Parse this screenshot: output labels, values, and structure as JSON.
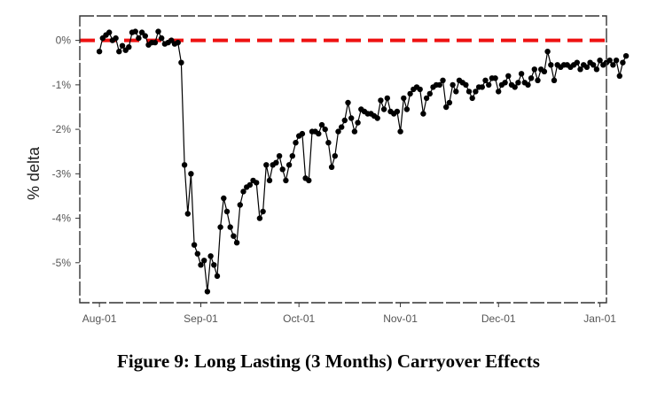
{
  "caption": "Figure 9: Long Lasting (3 Months) Carryover Effects",
  "chart_data": {
    "type": "line",
    "title": "",
    "xlabel": "",
    "ylabel": "% delta",
    "x_ticks": [
      "Aug-01",
      "Sep-01",
      "Oct-01",
      "Nov-01",
      "Dec-01",
      "Jan-01"
    ],
    "y_ticks": [
      "0%",
      "-1%",
      "-2%",
      "-3%",
      "-4%",
      "-5%"
    ],
    "y_tick_values": [
      0,
      -1,
      -2,
      -3,
      -4,
      -5
    ],
    "ylim": [
      -5.9,
      0.55
    ],
    "xlim": [
      "2001-07-26",
      "2002-01-03"
    ],
    "grid": false,
    "reference_line": {
      "y": 0,
      "color": "#ee1111",
      "style": "dashed"
    },
    "series_color": "#000000",
    "series": [
      {
        "points": [
          [
            "2001-08-01",
            -0.25
          ],
          [
            "2001-08-02",
            0.05
          ],
          [
            "2001-08-03",
            0.12
          ],
          [
            "2001-08-04",
            0.18
          ],
          [
            "2001-08-05",
            0.0
          ],
          [
            "2001-08-06",
            0.05
          ],
          [
            "2001-08-07",
            -0.25
          ],
          [
            "2001-08-08",
            -0.12
          ],
          [
            "2001-08-09",
            -0.22
          ],
          [
            "2001-08-10",
            -0.15
          ],
          [
            "2001-08-11",
            0.18
          ],
          [
            "2001-08-12",
            0.2
          ],
          [
            "2001-08-13",
            0.05
          ],
          [
            "2001-08-14",
            0.18
          ],
          [
            "2001-08-15",
            0.1
          ],
          [
            "2001-08-16",
            -0.1
          ],
          [
            "2001-08-17",
            -0.05
          ],
          [
            "2001-08-18",
            -0.05
          ],
          [
            "2001-08-19",
            0.2
          ],
          [
            "2001-08-20",
            0.05
          ],
          [
            "2001-08-21",
            -0.08
          ],
          [
            "2001-08-22",
            -0.05
          ],
          [
            "2001-08-23",
            -0.0
          ],
          [
            "2001-08-24",
            -0.08
          ],
          [
            "2001-08-25",
            -0.05
          ],
          [
            "2001-08-26",
            -0.5
          ],
          [
            "2001-08-27",
            -2.8
          ],
          [
            "2001-08-28",
            -3.9
          ],
          [
            "2001-08-29",
            -3.0
          ],
          [
            "2001-08-30",
            -4.6
          ],
          [
            "2001-08-31",
            -4.8
          ],
          [
            "2001-09-01",
            -5.05
          ],
          [
            "2001-09-02",
            -4.95
          ],
          [
            "2001-09-03",
            -5.65
          ],
          [
            "2001-09-04",
            -4.85
          ],
          [
            "2001-09-05",
            -5.05
          ],
          [
            "2001-09-06",
            -5.3
          ],
          [
            "2001-09-07",
            -4.2
          ],
          [
            "2001-09-08",
            -3.55
          ],
          [
            "2001-09-09",
            -3.85
          ],
          [
            "2001-09-10",
            -4.2
          ],
          [
            "2001-09-11",
            -4.4
          ],
          [
            "2001-09-12",
            -4.55
          ],
          [
            "2001-09-13",
            -3.7
          ],
          [
            "2001-09-14",
            -3.4
          ],
          [
            "2001-09-15",
            -3.3
          ],
          [
            "2001-09-16",
            -3.25
          ],
          [
            "2001-09-17",
            -3.15
          ],
          [
            "2001-09-18",
            -3.2
          ],
          [
            "2001-09-19",
            -4.0
          ],
          [
            "2001-09-20",
            -3.85
          ],
          [
            "2001-09-21",
            -2.8
          ],
          [
            "2001-09-22",
            -3.15
          ],
          [
            "2001-09-23",
            -2.8
          ],
          [
            "2001-09-24",
            -2.75
          ],
          [
            "2001-09-25",
            -2.6
          ],
          [
            "2001-09-26",
            -2.9
          ],
          [
            "2001-09-27",
            -3.15
          ],
          [
            "2001-09-28",
            -2.8
          ],
          [
            "2001-09-29",
            -2.6
          ],
          [
            "2001-09-30",
            -2.3
          ],
          [
            "2001-10-01",
            -2.15
          ],
          [
            "2001-10-02",
            -2.1
          ],
          [
            "2001-10-03",
            -3.1
          ],
          [
            "2001-10-04",
            -3.15
          ],
          [
            "2001-10-05",
            -2.05
          ],
          [
            "2001-10-06",
            -2.05
          ],
          [
            "2001-10-07",
            -2.1
          ],
          [
            "2001-10-08",
            -1.9
          ],
          [
            "2001-10-09",
            -2.0
          ],
          [
            "2001-10-10",
            -2.3
          ],
          [
            "2001-10-11",
            -2.85
          ],
          [
            "2001-10-12",
            -2.6
          ],
          [
            "2001-10-13",
            -2.05
          ],
          [
            "2001-10-14",
            -1.95
          ],
          [
            "2001-10-15",
            -1.8
          ],
          [
            "2001-10-16",
            -1.4
          ],
          [
            "2001-10-17",
            -1.75
          ],
          [
            "2001-10-18",
            -2.05
          ],
          [
            "2001-10-19",
            -1.85
          ],
          [
            "2001-10-20",
            -1.55
          ],
          [
            "2001-10-21",
            -1.6
          ],
          [
            "2001-10-22",
            -1.65
          ],
          [
            "2001-10-23",
            -1.65
          ],
          [
            "2001-10-24",
            -1.7
          ],
          [
            "2001-10-25",
            -1.75
          ],
          [
            "2001-10-26",
            -1.35
          ],
          [
            "2001-10-27",
            -1.55
          ],
          [
            "2001-10-28",
            -1.3
          ],
          [
            "2001-10-29",
            -1.6
          ],
          [
            "2001-10-30",
            -1.65
          ],
          [
            "2001-10-31",
            -1.6
          ],
          [
            "2001-11-01",
            -2.05
          ],
          [
            "2001-11-02",
            -1.3
          ],
          [
            "2001-11-03",
            -1.55
          ],
          [
            "2001-11-04",
            -1.2
          ],
          [
            "2001-11-05",
            -1.1
          ],
          [
            "2001-11-06",
            -1.05
          ],
          [
            "2001-11-07",
            -1.1
          ],
          [
            "2001-11-08",
            -1.65
          ],
          [
            "2001-11-09",
            -1.3
          ],
          [
            "2001-11-10",
            -1.2
          ],
          [
            "2001-11-11",
            -1.05
          ],
          [
            "2001-11-12",
            -1.0
          ],
          [
            "2001-11-13",
            -1.0
          ],
          [
            "2001-11-14",
            -0.9
          ],
          [
            "2001-11-15",
            -1.5
          ],
          [
            "2001-11-16",
            -1.4
          ],
          [
            "2001-11-17",
            -1.0
          ],
          [
            "2001-11-18",
            -1.15
          ],
          [
            "2001-11-19",
            -0.9
          ],
          [
            "2001-11-20",
            -0.95
          ],
          [
            "2001-11-21",
            -1.0
          ],
          [
            "2001-11-22",
            -1.15
          ],
          [
            "2001-11-23",
            -1.3
          ],
          [
            "2001-11-24",
            -1.15
          ],
          [
            "2001-11-25",
            -1.05
          ],
          [
            "2001-11-26",
            -1.05
          ],
          [
            "2001-11-27",
            -0.9
          ],
          [
            "2001-11-28",
            -1.0
          ],
          [
            "2001-11-29",
            -0.85
          ],
          [
            "2001-11-30",
            -0.85
          ],
          [
            "2001-12-01",
            -1.15
          ],
          [
            "2001-12-02",
            -1.0
          ],
          [
            "2001-12-03",
            -0.95
          ],
          [
            "2001-12-04",
            -0.8
          ],
          [
            "2001-12-05",
            -1.0
          ],
          [
            "2001-12-06",
            -1.05
          ],
          [
            "2001-12-07",
            -0.95
          ],
          [
            "2001-12-08",
            -0.75
          ],
          [
            "2001-12-09",
            -0.95
          ],
          [
            "2001-12-10",
            -1.0
          ],
          [
            "2001-12-11",
            -0.85
          ],
          [
            "2001-12-12",
            -0.65
          ],
          [
            "2001-12-13",
            -0.9
          ],
          [
            "2001-12-14",
            -0.65
          ],
          [
            "2001-12-15",
            -0.7
          ],
          [
            "2001-12-16",
            -0.25
          ],
          [
            "2001-12-17",
            -0.55
          ],
          [
            "2001-12-18",
            -0.9
          ],
          [
            "2001-12-19",
            -0.55
          ],
          [
            "2001-12-20",
            -0.6
          ],
          [
            "2001-12-21",
            -0.55
          ],
          [
            "2001-12-22",
            -0.55
          ],
          [
            "2001-12-23",
            -0.6
          ],
          [
            "2001-12-24",
            -0.55
          ],
          [
            "2001-12-25",
            -0.5
          ],
          [
            "2001-12-26",
            -0.65
          ],
          [
            "2001-12-27",
            -0.55
          ],
          [
            "2001-12-28",
            -0.6
          ],
          [
            "2001-12-29",
            -0.5
          ],
          [
            "2001-12-30",
            -0.55
          ],
          [
            "2001-12-31",
            -0.65
          ],
          [
            "2002-01-01",
            -0.45
          ],
          [
            "2002-01-02",
            -0.55
          ],
          [
            "2002-01-03",
            -0.5
          ],
          [
            "2002-01-04",
            -0.45
          ],
          [
            "2002-01-05",
            -0.55
          ],
          [
            "2002-01-06",
            -0.45
          ],
          [
            "2002-01-07",
            -0.8
          ],
          [
            "2002-01-08",
            -0.5
          ],
          [
            "2002-01-09",
            -0.35
          ]
        ]
      }
    ]
  }
}
